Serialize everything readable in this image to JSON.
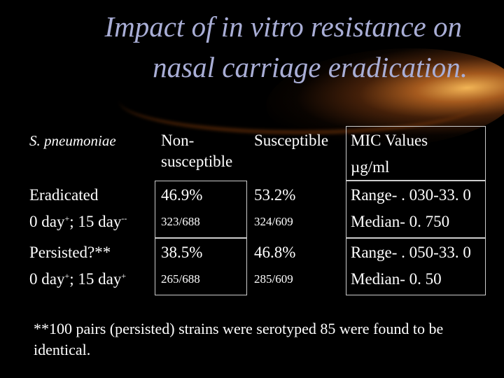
{
  "title": {
    "line1": "Impact of in vitro resistance on",
    "line2": "nasal carriage eradication."
  },
  "table": {
    "header": {
      "organism": "S. pneumoniae",
      "nonsusceptible_1": "Non-",
      "nonsusceptible_2": "susceptible",
      "susceptible": "Susceptible",
      "mic_1": "MIC Values",
      "mic_2": "µg/ml"
    },
    "rows": [
      {
        "label_1": "Eradicated",
        "label_2_a": "0 day",
        "label_2_sup1": "+",
        "label_2_b": "; 15 day",
        "label_2_sup2": "--",
        "nonsusceptible_pct": "46.9%",
        "nonsusceptible_frac": "323/688",
        "susceptible_pct": "53.2%",
        "susceptible_frac": "324/609",
        "mic_range": "Range- . 030-33. 0",
        "mic_median": "Median- 0. 750"
      },
      {
        "label_1": "Persisted?**",
        "label_2_a": "0 day",
        "label_2_sup1": "+",
        "label_2_b": "; 15 day",
        "label_2_sup2": "+",
        "nonsusceptible_pct": "38.5%",
        "nonsusceptible_frac": "265/688",
        "susceptible_pct": "46.8%",
        "susceptible_frac": "285/609",
        "mic_range": "Range- . 050-33. 0",
        "mic_median": "Median- 0. 50"
      }
    ]
  },
  "footnote": "**100 pairs (persisted) strains were serotyped 85 were found to be identical.",
  "colors": {
    "background": "#000000",
    "title": "#a9aed6",
    "text": "#ffffff",
    "glow": "#e08a30"
  }
}
